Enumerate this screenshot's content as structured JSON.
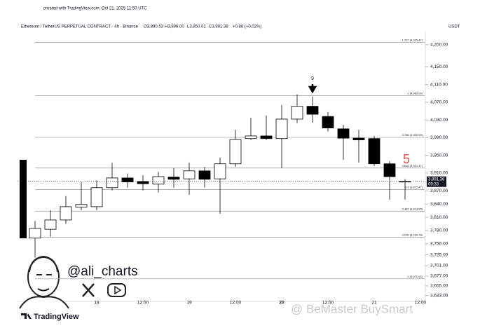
{
  "chart_data": {
    "type": "candlestick",
    "watermark_top": "created with TradingView.com, Oct 21, 2025 11:50 UTC",
    "symbol": "Ethereum / TetherUS PERPETUAL CONTRACT · 4h · Binance",
    "ohlc_text": [
      "O3,890.53",
      "H3,896.00",
      "L3,850.02",
      "C3,891.38"
    ],
    "change_text": "+0.86 (+0.02%)",
    "currency": "USDT",
    "categories": [
      null,
      null,
      null,
      null,
      "18",
      null,
      null,
      "12:00",
      null,
      null,
      "19",
      null,
      null,
      "12:00",
      null,
      null,
      "20",
      null,
      null,
      "12:00",
      null,
      null,
      "21",
      null,
      null,
      "12:00"
    ],
    "open": [
      3763,
      3783,
      3804,
      3833,
      3834,
      3877,
      3899,
      3891,
      3885,
      3901,
      3897,
      3915,
      3897,
      3931,
      3988,
      3994,
      3988,
      4032,
      4061,
      4038,
      4010,
      3989,
      3988,
      3931,
      3890.53,
      null
    ],
    "high": [
      3802,
      3826,
      3858,
      3890,
      3894,
      3934,
      3909,
      3905,
      3913,
      3921,
      3934,
      3924,
      3945,
      4008,
      4035,
      4040,
      4064,
      4088,
      4083,
      4048,
      4019,
      4008,
      3994,
      3937,
      3896.0,
      null
    ],
    "low": [
      3719,
      3766,
      3795,
      3826,
      3826,
      3871,
      3877,
      3871,
      3866,
      3877,
      3861,
      3877,
      3818,
      3924,
      3985,
      3985,
      3921,
      4023,
      4024,
      4004,
      3940,
      3934,
      3926,
      3850,
      3850.02,
      null
    ],
    "close": [
      3785,
      3804,
      3834,
      3839,
      3877,
      3899,
      3890,
      3886,
      3902,
      3896,
      3915,
      3896,
      3931,
      3986,
      3994,
      3988,
      4032,
      4061,
      4043,
      4012,
      3989,
      3985,
      3931,
      3902,
      3891.38,
      null
    ],
    "up_color": "#ffffff",
    "down_color": "#000000",
    "ylim": [
      3620,
      4230
    ],
    "yticks": [
      {
        "value": 4200,
        "label": "4,200.00"
      },
      {
        "value": 4150,
        "label": "4,150.00"
      },
      {
        "value": 4110,
        "label": "4,110.00"
      },
      {
        "value": 4070,
        "label": "4,070.00"
      },
      {
        "value": 4030,
        "label": "4,030.00"
      },
      {
        "value": 3990,
        "label": "3,990.00"
      },
      {
        "value": 3950,
        "label": "3,950.00"
      },
      {
        "value": 3910,
        "label": "3,910.00"
      },
      {
        "value": 3870,
        "label": "3,870.00"
      },
      {
        "value": 3840,
        "label": "3,840.00"
      },
      {
        "value": 3810,
        "label": "3,810.00"
      },
      {
        "value": 3780,
        "label": "3,780.00"
      },
      {
        "value": 3750,
        "label": "3,750.00"
      },
      {
        "value": 3725,
        "label": "3,725.00"
      },
      {
        "value": 3701,
        "label": "3,701.00"
      },
      {
        "value": 3677,
        "label": "3,677.00"
      },
      {
        "value": 3655,
        "label": "3,655.00"
      },
      {
        "value": 3633,
        "label": "3,633.00"
      }
    ],
    "levels": [
      {
        "value": 4205.47,
        "label": "1.272 (4,205.47)"
      },
      {
        "value": 4085.0,
        "label": "1 (4,085.00)"
      },
      {
        "value": 3990.69,
        "label": "0.786 (3,990.69)"
      },
      {
        "value": 3921.47,
        "label": "0.618 (3,921.47)"
      },
      {
        "value": 3872.47,
        "label": "0.5 (3,872.47)"
      },
      {
        "value": 3823.95,
        "label": "0.382 (3,823.95)"
      },
      {
        "value": 3764.78,
        "label": "0.236 (3,764.78)"
      },
      {
        "value": 3671.0,
        "label": "0 (3,671.00)"
      }
    ],
    "last_price": 3891.38,
    "last_price_label": "3,891.38",
    "countdown": "09:33",
    "annotations": [
      "9",
      "5"
    ],
    "author": "@ali_charts",
    "brand": "TradingView",
    "watermark": "@ BeMaster BuySmart"
  }
}
